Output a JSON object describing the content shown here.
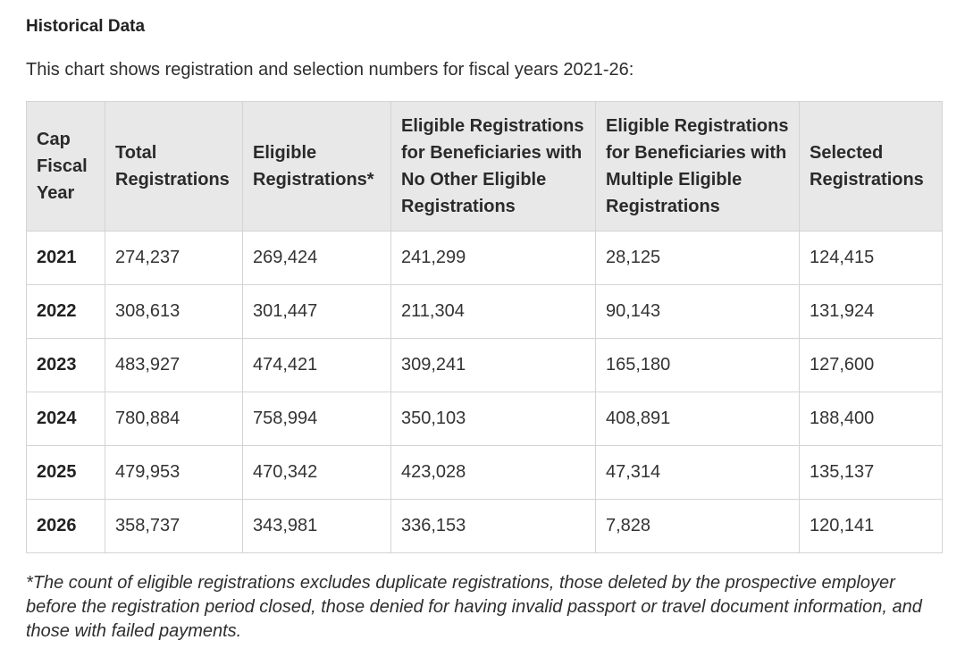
{
  "heading": "Historical Data",
  "intro": "This chart shows registration and selection numbers for fiscal years 2021-26:",
  "chart_data": {
    "type": "table",
    "columns": [
      "Cap Fiscal Year",
      "Total Registrations",
      "Eligible Registrations*",
      "Eligible Registrations for Beneficiaries with No Other Eligible Registrations",
      "Eligible Registrations for Beneficiaries with Multiple Eligible Registrations",
      "Selected Registrations"
    ],
    "rows": [
      [
        "2021",
        "274,237",
        "269,424",
        "241,299",
        "28,125",
        "124,415"
      ],
      [
        "2022",
        "308,613",
        "301,447",
        "211,304",
        "90,143",
        "131,924"
      ],
      [
        "2023",
        "483,927",
        "474,421",
        "309,241",
        "165,180",
        "127,600"
      ],
      [
        "2024",
        "780,884",
        "758,994",
        "350,103",
        "408,891",
        "188,400"
      ],
      [
        "2025",
        "479,953",
        "470,342",
        "423,028",
        "47,314",
        "135,137"
      ],
      [
        "2026",
        "358,737",
        "343,981",
        "336,153",
        "7,828",
        "120,141"
      ]
    ]
  },
  "footnote": "*The count of eligible registrations excludes duplicate registrations, those deleted by the prospective employer before the registration period closed, those denied for having invalid passport or travel document information, and those with failed payments."
}
